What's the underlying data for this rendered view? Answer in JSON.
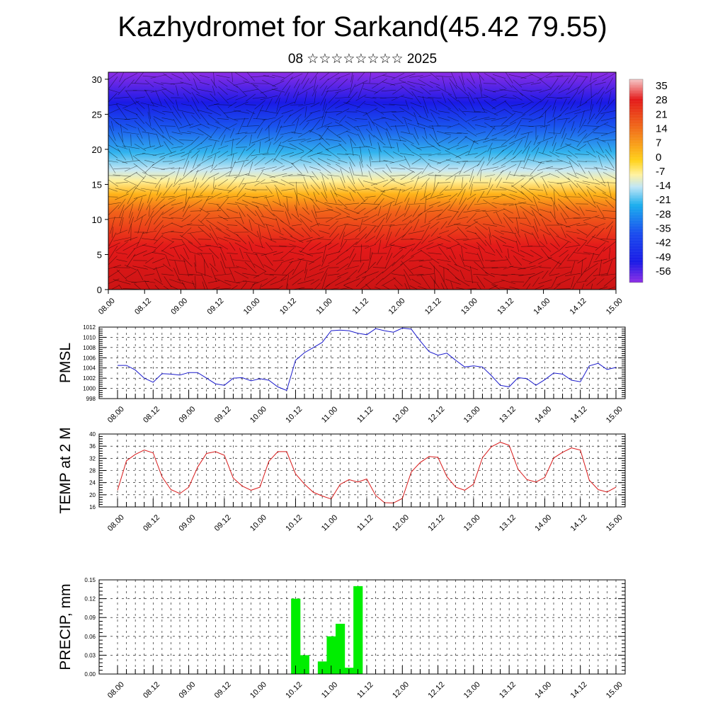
{
  "title": "Kazhydromet for Sarkand(45.42 79.55)",
  "subtitle": "08 ☆☆☆☆☆☆☆☆ 2025",
  "colors": {
    "pmsl_line": "#1a1acc",
    "temp_line": "#d81a1a",
    "precip_bar": "#00ee00",
    "grid": "#000000"
  },
  "chart_data": [
    {
      "type": "heatmap",
      "name": "cross-section",
      "x_ticks": [
        "08.00",
        "08.12",
        "09.00",
        "09.12",
        "10.00",
        "10.12",
        "11.00",
        "11.12",
        "12.00",
        "12.12",
        "13.00",
        "13.12",
        "14.00",
        "14.12",
        "15.00"
      ],
      "y_ticks": [
        0,
        5,
        10,
        15,
        20,
        25,
        30
      ],
      "ylim": [
        0,
        31
      ],
      "colorbar_labels": [
        "35",
        "28",
        "21",
        "14",
        "7",
        "0",
        "-7",
        "-14",
        "-21",
        "-28",
        "-35",
        "-42",
        "-49",
        "-56"
      ],
      "colorbar_colors": [
        "#f6c6c6",
        "#e41a1a",
        "#f2721a",
        "#ffd21a",
        "#fff2a0",
        "#bfe6f6",
        "#1aaeee",
        "#1a4cee",
        "#1a1ae6",
        "#8e2ee6"
      ]
    },
    {
      "type": "line",
      "name": "pmsl",
      "ylabel": "PMSL",
      "ylim": [
        998,
        1012
      ],
      "y_ticks": [
        "998",
        "1000",
        "1002",
        "1004",
        "1006",
        "1008",
        "1010",
        "1012"
      ],
      "x_ticks": [
        "08.00",
        "08.12",
        "09.00",
        "09.12",
        "10.00",
        "10.12",
        "11.00",
        "11.12",
        "12.00",
        "12.12",
        "13.00",
        "13.12",
        "14.00",
        "14.12",
        "15.00"
      ],
      "values": [
        1004.5,
        1004.5,
        1003.6,
        1002.0,
        1001.2,
        1002.9,
        1002.8,
        1002.6,
        1003.1,
        1003.1,
        1002.0,
        1000.9,
        1000.6,
        1002.0,
        1002.1,
        1001.5,
        1001.9,
        1001.6,
        1000.3,
        999.6,
        1005.5,
        1007.0,
        1008.0,
        1009.0,
        1011.3,
        1011.4,
        1011.3,
        1010.8,
        1010.5,
        1011.7,
        1011.3,
        1011.0,
        1011.8,
        1011.6,
        1009.3,
        1007.2,
        1006.5,
        1006.9,
        1005.5,
        1004.2,
        1004.4,
        1004.2,
        1002.5,
        1000.6,
        1000.3,
        1002.1,
        1001.9,
        1000.6,
        1001.7,
        1003.0,
        1002.8,
        1001.6,
        1001.3,
        1004.4,
        1004.9,
        1003.7,
        1004.1
      ]
    },
    {
      "type": "line",
      "name": "temp",
      "ylabel": "TEMP at 2 M",
      "ylim": [
        16,
        40
      ],
      "y_ticks": [
        "16",
        "20",
        "24",
        "28",
        "32",
        "36",
        "40"
      ],
      "x_ticks": [
        "08.00",
        "08.12",
        "09.00",
        "09.12",
        "10.00",
        "10.12",
        "11.00",
        "11.12",
        "12.00",
        "12.12",
        "13.00",
        "13.12",
        "14.00",
        "14.12",
        "15.00"
      ],
      "values": [
        21.5,
        31.2,
        33.3,
        34.7,
        33.8,
        25.9,
        21.7,
        20.4,
        22.5,
        29.1,
        33.6,
        34.2,
        33.0,
        25.5,
        22.9,
        21.5,
        22.5,
        31.0,
        34.2,
        34.2,
        26.9,
        23.5,
        20.8,
        19.6,
        18.6,
        23.4,
        25.0,
        24.2,
        25.2,
        19.8,
        17.4,
        17.3,
        18.8,
        27.5,
        30.6,
        32.6,
        32.3,
        26.0,
        22.5,
        21.5,
        23.5,
        32.2,
        35.8,
        37.3,
        36.3,
        28.4,
        25.0,
        24.2,
        25.7,
        32.1,
        34.0,
        35.4,
        34.7,
        24.8,
        21.7,
        20.9,
        22.5
      ]
    },
    {
      "type": "bar",
      "name": "precip",
      "ylabel": "PRECIP, mm",
      "ylim": [
        0,
        0.15
      ],
      "y_ticks": [
        "0.00",
        "0.03",
        "0.06",
        "0.09",
        "0.12",
        "0.15"
      ],
      "x_ticks": [
        "08.00",
        "08.12",
        "09.00",
        "09.12",
        "10.00",
        "10.12",
        "11.00",
        "11.12",
        "12.00",
        "12.12",
        "13.00",
        "13.12",
        "14.00",
        "14.12",
        "15.00"
      ],
      "values": [
        0,
        0,
        0,
        0,
        0,
        0,
        0,
        0,
        0,
        0,
        0,
        0,
        0,
        0,
        0,
        0,
        0,
        0,
        0,
        0,
        0.12,
        0.03,
        0,
        0.02,
        0.06,
        0.08,
        0.01,
        0.14,
        0,
        0,
        0,
        0,
        0,
        0,
        0,
        0,
        0,
        0,
        0,
        0,
        0,
        0,
        0,
        0,
        0,
        0,
        0,
        0,
        0,
        0,
        0,
        0,
        0,
        0,
        0,
        0,
        0
      ]
    }
  ]
}
